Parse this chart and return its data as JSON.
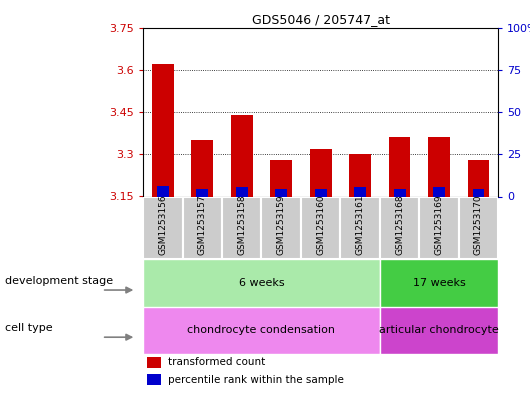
{
  "title": "GDS5046 / 205747_at",
  "samples": [
    "GSM1253156",
    "GSM1253157",
    "GSM1253158",
    "GSM1253159",
    "GSM1253160",
    "GSM1253161",
    "GSM1253168",
    "GSM1253169",
    "GSM1253170"
  ],
  "transformed_counts": [
    3.62,
    3.35,
    3.44,
    3.28,
    3.32,
    3.3,
    3.36,
    3.36,
    3.28
  ],
  "percentile_ranks": [
    6.5,
    4.5,
    5.5,
    4.5,
    4.5,
    5.5,
    4.5,
    5.5,
    4.5
  ],
  "baseline": 3.15,
  "ylim_left": [
    3.15,
    3.75
  ],
  "ylim_right": [
    0,
    100
  ],
  "yticks_left": [
    3.15,
    3.3,
    3.45,
    3.6,
    3.75
  ],
  "yticks_right": [
    0,
    25,
    50,
    75,
    100
  ],
  "ytick_labels_left": [
    "3.15",
    "3.3",
    "3.45",
    "3.6",
    "3.75"
  ],
  "ytick_labels_right": [
    "0",
    "25",
    "50",
    "75",
    "100%"
  ],
  "grid_lines": [
    3.3,
    3.45,
    3.6
  ],
  "bar_color": "#cc0000",
  "percentile_color": "#0000cc",
  "bar_width": 0.55,
  "dev_stage_groups": [
    {
      "text": "6 weeks",
      "start": 0,
      "end": 5,
      "color": "#aaeaaa"
    },
    {
      "text": "17 weeks",
      "start": 6,
      "end": 8,
      "color": "#44cc44"
    }
  ],
  "cell_type_groups": [
    {
      "text": "chondrocyte condensation",
      "start": 0,
      "end": 5,
      "color": "#ee88ee"
    },
    {
      "text": "articular chondrocyte",
      "start": 6,
      "end": 8,
      "color": "#cc44cc"
    }
  ],
  "dev_stage_label": "development stage",
  "cell_type_label": "cell type",
  "legend_items": [
    {
      "label": "transformed count",
      "color": "#cc0000"
    },
    {
      "label": "percentile rank within the sample",
      "color": "#0000cc"
    }
  ],
  "tick_label_color_left": "#cc0000",
  "tick_label_color_right": "#0000cc",
  "sample_box_color": "#cccccc"
}
